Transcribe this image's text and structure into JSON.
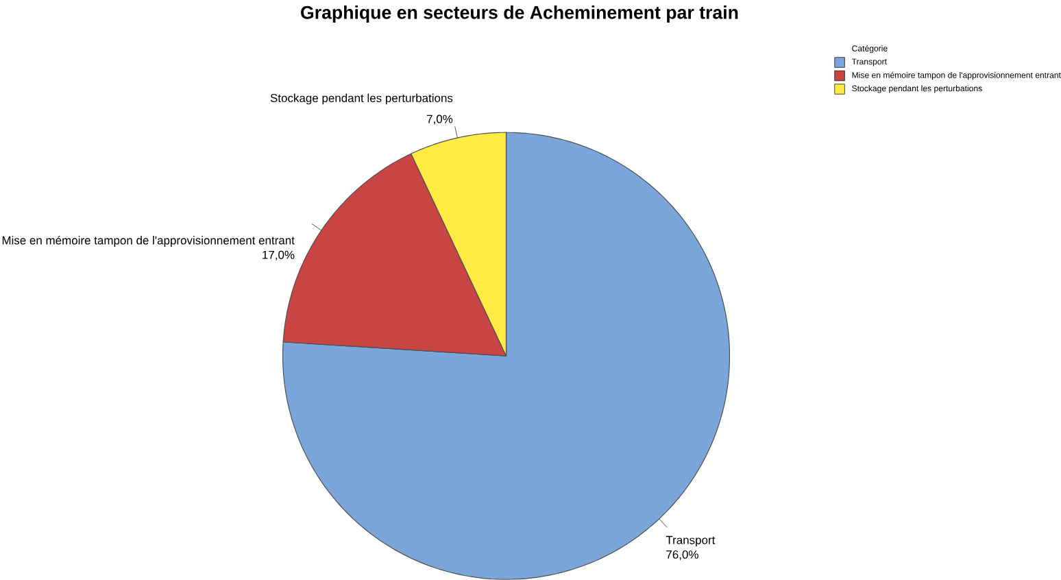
{
  "chart_data": {
    "type": "pie",
    "title": "Graphique en secteurs de Acheminement par train",
    "categories": [
      "Transport",
      "Mise en mémoire tampon de l'approvisionnement entrant",
      "Stockage pendant les perturbations"
    ],
    "values": [
      76,
      17,
      7
    ],
    "value_labels": [
      "76,0%",
      "17,0%",
      "7,0%"
    ],
    "colors": [
      "#7ba6da",
      "#c84544",
      "#ffeb44"
    ],
    "legend": "top right",
    "legend_title": "Catégorie"
  }
}
